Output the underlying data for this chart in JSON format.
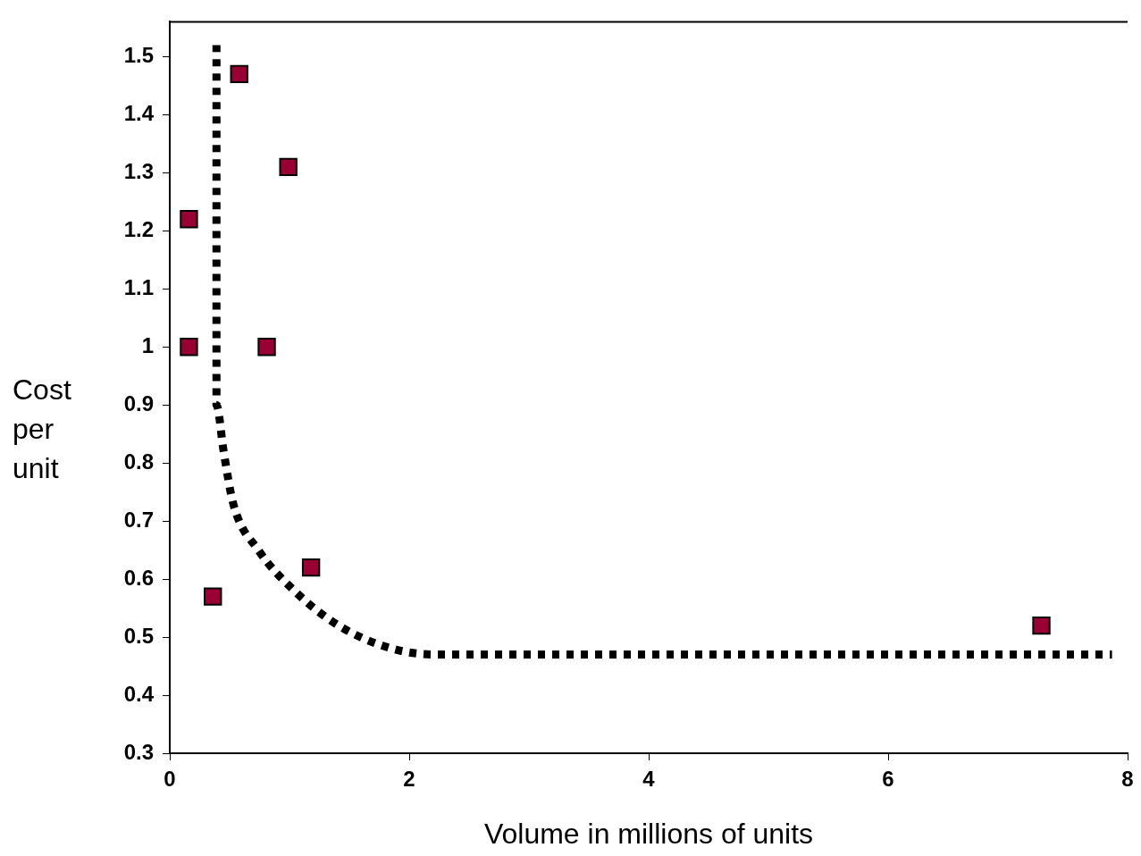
{
  "chart_data": {
    "type": "scatter",
    "xlabel": "Volume in millions of units",
    "ylabel": "Cost per unit",
    "xlim": [
      0,
      8
    ],
    "ylim": [
      0.3,
      1.56
    ],
    "xticks": [
      0,
      2,
      4,
      6,
      8
    ],
    "yticks": [
      0.3,
      0.4,
      0.5,
      0.6,
      0.7,
      0.8,
      0.9,
      1,
      1.1,
      1.2,
      1.3,
      1.4,
      1.5
    ],
    "grid": false,
    "legend": false,
    "series": [
      {
        "type": "scatter",
        "color": "#990033",
        "marker": "square",
        "x": [
          0.16,
          0.16,
          0.36,
          0.58,
          0.99,
          0.81,
          1.18,
          7.28
        ],
        "values": [
          1.22,
          1.0,
          0.57,
          1.47,
          1.31,
          1.0,
          0.62,
          0.52
        ]
      },
      {
        "type": "line",
        "color": "#000000",
        "line_style": "dotted",
        "marker": "none",
        "x": [
          0.39,
          0.39,
          0.45,
          0.53,
          0.74,
          1.04,
          1.41,
          1.86,
          2.23,
          7.87
        ],
        "values": [
          1.52,
          0.9,
          0.82,
          0.73,
          0.65,
          0.58,
          0.52,
          0.48,
          0.47,
          0.47
        ]
      }
    ]
  }
}
